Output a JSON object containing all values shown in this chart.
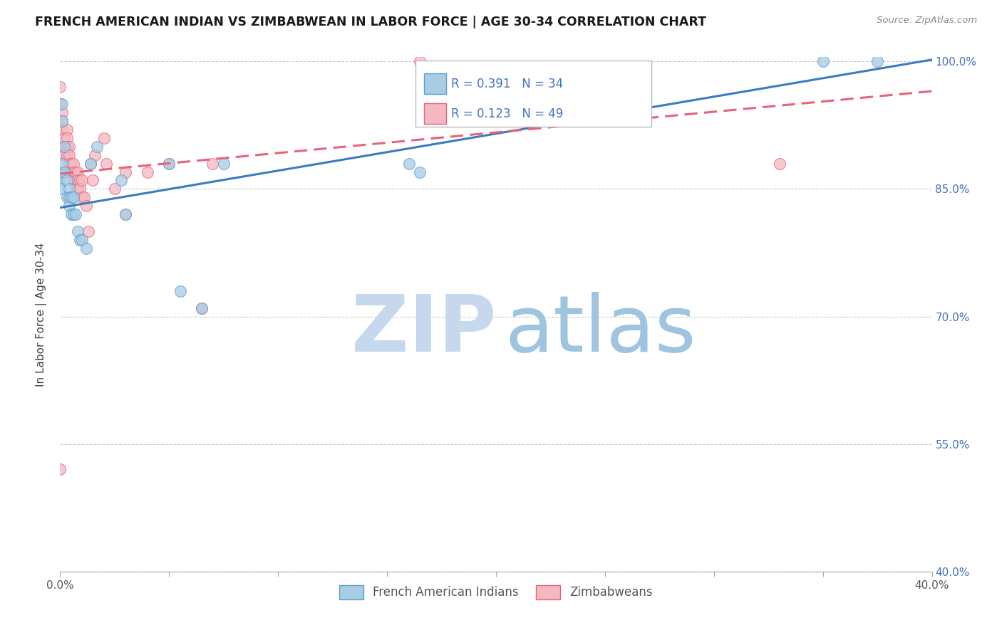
{
  "title": "FRENCH AMERICAN INDIAN VS ZIMBABWEAN IN LABOR FORCE | AGE 30-34 CORRELATION CHART",
  "source": "Source: ZipAtlas.com",
  "ylabel": "In Labor Force | Age 30-34",
  "legend_labels": [
    "French American Indians",
    "Zimbabweans"
  ],
  "legend_R": [
    0.391,
    0.123
  ],
  "legend_N": [
    34,
    49
  ],
  "xlim": [
    0.0,
    0.4
  ],
  "ylim": [
    0.4,
    1.005
  ],
  "xticks": [
    0.0,
    0.05,
    0.1,
    0.15,
    0.2,
    0.25,
    0.3,
    0.35,
    0.4
  ],
  "ytick_vals": [
    1.0,
    0.85,
    0.7,
    0.55,
    0.4
  ],
  "ytick_labels": [
    "100.0%",
    "85.0%",
    "70.0%",
    "55.0%",
    "40.0%"
  ],
  "blue_color": "#a8cce4",
  "pink_color": "#f4b8c1",
  "blue_edge_color": "#5b9ecf",
  "pink_edge_color": "#e8637a",
  "blue_line_color": "#3b7bbf",
  "pink_line_color": "#e8637a",
  "watermark_zip_color": "#c5d8ee",
  "watermark_atlas_color": "#9ec4e0",
  "blue_line_x": [
    0.0,
    0.4
  ],
  "blue_line_y": [
    0.828,
    1.002
  ],
  "pink_line_x": [
    0.0,
    0.4
  ],
  "pink_line_y": [
    0.868,
    0.965
  ],
  "blue_x": [
    0.0,
    0.0,
    0.0,
    0.001,
    0.001,
    0.001,
    0.002,
    0.002,
    0.003,
    0.003,
    0.004,
    0.004,
    0.004,
    0.005,
    0.005,
    0.006,
    0.006,
    0.007,
    0.008,
    0.009,
    0.01,
    0.012,
    0.014,
    0.017,
    0.028,
    0.03,
    0.05,
    0.055,
    0.065,
    0.075,
    0.16,
    0.165,
    0.35,
    0.375
  ],
  "blue_y": [
    0.87,
    0.86,
    0.85,
    0.95,
    0.93,
    0.88,
    0.9,
    0.87,
    0.86,
    0.84,
    0.85,
    0.84,
    0.83,
    0.82,
    0.84,
    0.84,
    0.82,
    0.82,
    0.8,
    0.79,
    0.79,
    0.78,
    0.88,
    0.9,
    0.86,
    0.82,
    0.88,
    0.73,
    0.71,
    0.88,
    0.88,
    0.87,
    1.0,
    1.0
  ],
  "pink_x": [
    0.0,
    0.0,
    0.001,
    0.001,
    0.001,
    0.002,
    0.002,
    0.002,
    0.003,
    0.003,
    0.003,
    0.003,
    0.004,
    0.004,
    0.004,
    0.005,
    0.005,
    0.005,
    0.006,
    0.006,
    0.006,
    0.007,
    0.007,
    0.007,
    0.008,
    0.008,
    0.008,
    0.009,
    0.009,
    0.01,
    0.01,
    0.011,
    0.012,
    0.013,
    0.014,
    0.015,
    0.016,
    0.02,
    0.021,
    0.025,
    0.03,
    0.03,
    0.04,
    0.05,
    0.065,
    0.07,
    0.165,
    0.33,
    0.0
  ],
  "pink_y": [
    0.97,
    0.95,
    0.94,
    0.93,
    0.92,
    0.91,
    0.9,
    0.89,
    0.92,
    0.91,
    0.9,
    0.89,
    0.9,
    0.89,
    0.88,
    0.88,
    0.87,
    0.87,
    0.88,
    0.87,
    0.86,
    0.87,
    0.86,
    0.85,
    0.87,
    0.86,
    0.85,
    0.86,
    0.85,
    0.86,
    0.84,
    0.84,
    0.83,
    0.8,
    0.88,
    0.86,
    0.89,
    0.91,
    0.88,
    0.85,
    0.87,
    0.82,
    0.87,
    0.88,
    0.71,
    0.88,
    1.0,
    0.88,
    0.52
  ]
}
